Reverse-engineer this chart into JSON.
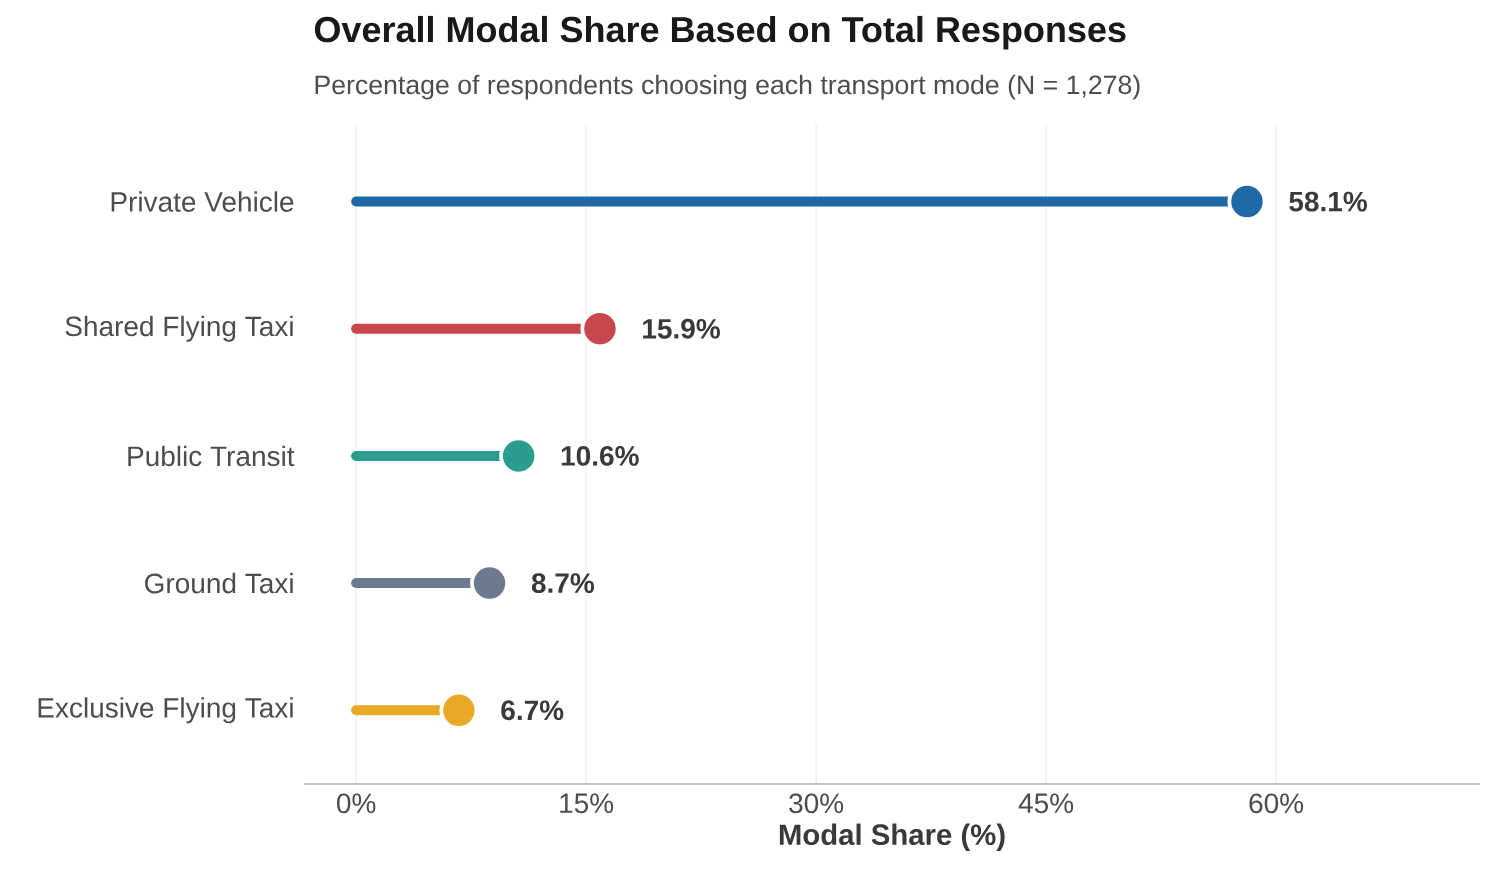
{
  "chart_data": {
    "type": "lollipop",
    "orientation": "horizontal",
    "title": "Overall Modal Share Based on Total Responses",
    "subtitle": "Percentage of respondents choosing each transport mode (N = 1,278)",
    "xlabel": "Modal Share (%)",
    "categories": [
      "Private Vehicle",
      "Shared Flying Taxi",
      "Public Transit",
      "Ground Taxi",
      "Exclusive Flying Taxi"
    ],
    "values": [
      58.1,
      15.9,
      10.6,
      8.7,
      6.7
    ],
    "value_labels": [
      "58.1%",
      "15.9%",
      "10.6%",
      "8.7%",
      "6.7%"
    ],
    "colors": [
      "#1f6aa5",
      "#c8474d",
      "#2a9d8f",
      "#6b7a8f",
      "#e9a825"
    ],
    "xlim": [
      -3.4,
      73.3
    ],
    "xticks": [
      {
        "value": 0,
        "label": "0%"
      },
      {
        "value": 15,
        "label": "15%"
      },
      {
        "value": 30,
        "label": "30%"
      },
      {
        "value": 45,
        "label": "45%"
      },
      {
        "value": 60,
        "label": "60%"
      }
    ],
    "grid": "x",
    "marker": "circle"
  }
}
